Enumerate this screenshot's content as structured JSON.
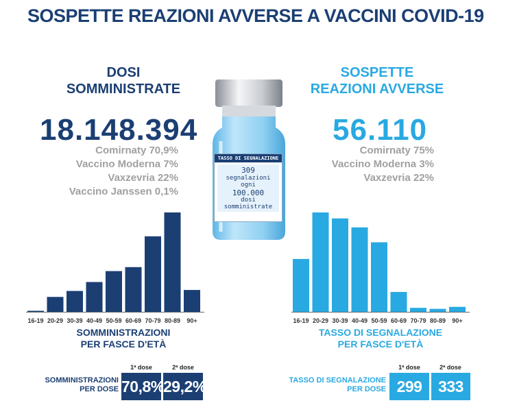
{
  "title": "SOSPETTE REAZIONI AVVERSE A VACCINI COVID-19",
  "left": {
    "heading_line1": "DOSI",
    "heading_line2": "SOMMINISTRATE",
    "total": "18.148.394",
    "shares": [
      "Comirnaty 70,9%",
      "Vaccino Moderna 7%",
      "Vaxzevria 22%",
      "Vaccino Janssen 0,1%"
    ]
  },
  "right": {
    "heading_line1": "SOSPETTE",
    "heading_line2": "REAZIONI AVVERSE",
    "total": "56.110",
    "shares": [
      "Comirnaty 75%",
      "Vaccino Moderna 3%",
      "Vaxzevria 22%"
    ]
  },
  "vial": {
    "label_title": "TASSO DI SEGNALAZIONE",
    "line1": "309",
    "line2": "segnalazioni",
    "line3": "ogni",
    "line4": "100.000",
    "line5": "dosi",
    "line6": "somministrate"
  },
  "colors": {
    "dark": "#1b3f73",
    "light": "#29a9e1",
    "grey": "#a0a0a0"
  },
  "chart_data": [
    {
      "type": "bar",
      "title": "SOMMINISTRAZIONI PER FASCE D'ETÀ",
      "title_line1": "SOMMINISTRAZIONI",
      "title_line2": "PER FASCE D'ETÀ",
      "categories": [
        "16-19",
        "20-29",
        "30-39",
        "40-49",
        "50-59",
        "60-69",
        "70-79",
        "80-89",
        "90+"
      ],
      "values": [
        0.5,
        7.5,
        10.5,
        15,
        20.5,
        22.5,
        38,
        50,
        11
      ],
      "color": "#1b3f73",
      "grid": false
    },
    {
      "type": "bar",
      "title": "TASSO DI SEGNALAZIONE PER FASCE D'ETÀ",
      "title_line1": "TASSO DI SEGNALAZIONE",
      "title_line2": "PER FASCE D'ETÀ",
      "categories": [
        "16-19",
        "20-29",
        "30-39",
        "40-49",
        "50-59",
        "60-69",
        "70-79",
        "80-89",
        "90+"
      ],
      "values": [
        532,
        1000,
        940,
        850,
        700,
        200,
        40,
        30,
        50
      ],
      "color": "#29a9e1",
      "grid": false
    }
  ],
  "per_dose_left": {
    "label_line1": "SOMMINISTRAZIONI",
    "label_line2": "PER DOSE",
    "dose1_caption": "1ª dose",
    "dose2_caption": "2ª dose",
    "dose1_value": "70,8%",
    "dose2_value": "29,2%"
  },
  "per_dose_right": {
    "label_line1": "TASSO DI SEGNALAZIONE",
    "label_line2": "PER DOSE",
    "dose1_caption": "1ª dose",
    "dose2_caption": "2ª dose",
    "dose1_value": "299",
    "dose2_value": "333"
  }
}
